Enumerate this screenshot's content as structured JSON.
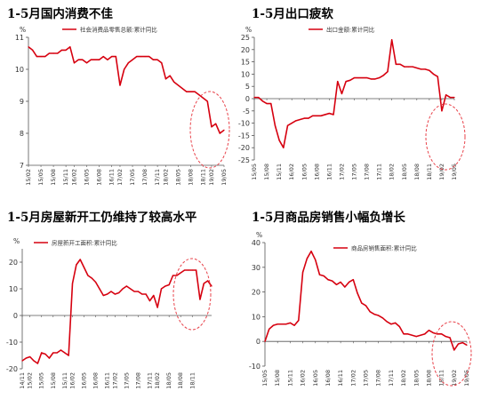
{
  "chart_data": [
    {
      "type": "line",
      "title": "1-5月国内消费不佳",
      "unit": "%",
      "series": [
        {
          "name": "社会消费品零售总额:累计同比",
          "color": "#d6000f"
        }
      ],
      "x_ticks": [
        "15/02",
        "15/05",
        "15/08",
        "15/11",
        "16/02",
        "16/05",
        "16/08",
        "16/11",
        "17/02",
        "17/05",
        "17/08",
        "17/11",
        "18/02",
        "18/05",
        "18/08",
        "18/11",
        "19/02",
        "19/05"
      ],
      "y_ticks": [
        "7",
        "8",
        "9",
        "10",
        "11"
      ],
      "ylim": [
        7,
        11
      ],
      "x": [
        "15/02",
        "15/03",
        "15/04",
        "15/05",
        "15/06",
        "15/07",
        "15/08",
        "15/09",
        "15/10",
        "15/11",
        "15/12",
        "16/02",
        "16/03",
        "16/04",
        "16/05",
        "16/06",
        "16/07",
        "16/08",
        "16/09",
        "16/10",
        "16/11",
        "16/12",
        "17/02",
        "17/03",
        "17/04",
        "17/05",
        "17/06",
        "17/07",
        "17/08",
        "17/09",
        "17/10",
        "17/11",
        "17/12",
        "18/02",
        "18/03",
        "18/04",
        "18/05",
        "18/06",
        "18/07",
        "18/08",
        "18/09",
        "18/10",
        "18/11",
        "18/12",
        "19/02",
        "19/03",
        "19/04",
        "19/05"
      ],
      "values": [
        10.7,
        10.6,
        10.4,
        10.4,
        10.4,
        10.5,
        10.5,
        10.5,
        10.6,
        10.6,
        10.7,
        10.2,
        10.3,
        10.3,
        10.2,
        10.3,
        10.3,
        10.3,
        10.4,
        10.3,
        10.4,
        10.4,
        9.5,
        10.0,
        10.2,
        10.3,
        10.4,
        10.4,
        10.4,
        10.4,
        10.3,
        10.3,
        10.2,
        9.7,
        9.8,
        9.6,
        9.5,
        9.4,
        9.3,
        9.3,
        9.3,
        9.2,
        9.1,
        9.0,
        8.2,
        8.3,
        8.0,
        8.1
      ],
      "annotation": "dashed-circle-highlight"
    },
    {
      "type": "line",
      "title": "1-5月出口疲软",
      "unit": "%",
      "series": [
        {
          "name": "出口金额:累计同比",
          "color": "#d6000f"
        }
      ],
      "x_ticks": [
        "15/05",
        "15/08",
        "15/11",
        "16/02",
        "16/05",
        "16/08",
        "16/11",
        "17/02",
        "17/05",
        "17/08",
        "17/11",
        "18/02",
        "18/05",
        "18/08",
        "18/11",
        "19/02",
        "19/05"
      ],
      "y_ticks": [
        "-25",
        "-20",
        "-15",
        "-10",
        "-5",
        "0",
        "5",
        "10",
        "15",
        "20",
        "25"
      ],
      "ylim": [
        -25,
        25
      ],
      "x": [
        "15/05",
        "15/06",
        "15/07",
        "15/08",
        "15/09",
        "15/10",
        "15/11",
        "15/12",
        "16/01",
        "16/02",
        "16/03",
        "16/04",
        "16/05",
        "16/06",
        "16/07",
        "16/08",
        "16/09",
        "16/10",
        "16/11",
        "16/12",
        "17/01",
        "17/02",
        "17/03",
        "17/04",
        "17/05",
        "17/06",
        "17/07",
        "17/08",
        "17/09",
        "17/10",
        "17/11",
        "17/12",
        "18/01",
        "18/02",
        "18/03",
        "18/04",
        "18/05",
        "18/06",
        "18/07",
        "18/08",
        "18/09",
        "18/10",
        "18/11",
        "18/12",
        "19/01",
        "19/02",
        "19/03",
        "19/04",
        "19/05"
      ],
      "values": [
        0.5,
        0.5,
        -1,
        -2,
        -2,
        -11,
        -17,
        -20,
        -11,
        -10,
        -9,
        -8.5,
        -8,
        -8,
        -7,
        -7,
        -7,
        -6.5,
        -6,
        -6.5,
        7,
        2,
        7,
        7.5,
        8.5,
        8.5,
        8.5,
        8.5,
        8,
        8,
        8.5,
        9.5,
        11,
        24,
        14,
        14,
        13,
        13,
        13,
        12.5,
        12,
        12,
        11.5,
        10,
        9,
        -5,
        1.5,
        0.5,
        0.5
      ],
      "annotation": "dashed-circle-highlight"
    },
    {
      "type": "line",
      "title": "1-5月房屋新开工仍维持了较高水平",
      "unit": "%",
      "series": [
        {
          "name": "房屋新开工面积:累计同比",
          "color": "#d6000f"
        }
      ],
      "x_ticks": [
        "14/11",
        "15/02",
        "15/05",
        "15/08",
        "15/11",
        "16/02",
        "16/05",
        "16/08",
        "16/11",
        "17/02",
        "17/05",
        "17/08",
        "17/11",
        "18/02",
        "18/05",
        "18/08",
        "18/11"
      ],
      "y_ticks": [
        "-20",
        "-10",
        "0",
        "10",
        "20"
      ],
      "ylim": [
        -20,
        25
      ],
      "x": [
        "14/11",
        "14/12",
        "15/02",
        "15/03",
        "15/04",
        "15/05",
        "15/06",
        "15/07",
        "15/08",
        "15/09",
        "15/10",
        "15/11",
        "15/12",
        "16/02",
        "16/03",
        "16/04",
        "16/05",
        "16/06",
        "16/07",
        "16/08",
        "16/09",
        "16/10",
        "16/11",
        "16/12",
        "17/02",
        "17/03",
        "17/04",
        "17/05",
        "17/06",
        "17/07",
        "17/08",
        "17/09",
        "17/10",
        "17/11",
        "17/12",
        "18/02",
        "18/03",
        "18/04",
        "18/05",
        "18/06",
        "18/07",
        "18/08",
        "18/09",
        "18/10",
        "18/11",
        "18/12",
        "19/02",
        "19/03",
        "19/04",
        "19/05"
      ],
      "values": [
        -17,
        -16,
        -15.5,
        -17,
        -18,
        -14,
        -14.5,
        -16,
        -14,
        -14,
        -13,
        -14,
        -15,
        12,
        19,
        21,
        18,
        15,
        14,
        12.5,
        10,
        7.5,
        8,
        9,
        8,
        8.5,
        10,
        11,
        10,
        9,
        9,
        8,
        8,
        5.5,
        7.5,
        3,
        10,
        11,
        11.5,
        15,
        15,
        16,
        17,
        17,
        17,
        17,
        6,
        12,
        13,
        11
      ],
      "annotation": "dashed-circle-highlight"
    },
    {
      "type": "line",
      "title": "1-5月商品房销售小幅负增长",
      "unit": "%",
      "series": [
        {
          "name": "商品房销售面积:累计同比",
          "color": "#d6000f"
        }
      ],
      "x_ticks": [
        "15/05",
        "15/08",
        "15/11",
        "16/02",
        "16/05",
        "16/08",
        "16/11",
        "17/02",
        "17/05",
        "17/08",
        "17/11",
        "18/02",
        "18/05",
        "18/08",
        "18/11",
        "19/02",
        "19/05"
      ],
      "y_ticks": [
        "-10",
        "0",
        "10",
        "20",
        "30",
        "40"
      ],
      "ylim": [
        -10,
        40
      ],
      "x": [
        "15/05",
        "15/06",
        "15/07",
        "15/08",
        "15/09",
        "15/10",
        "15/11",
        "15/12",
        "16/01",
        "16/02",
        "16/03",
        "16/04",
        "16/05",
        "16/06",
        "16/07",
        "16/08",
        "16/09",
        "16/10",
        "16/11",
        "16/12",
        "17/01",
        "17/02",
        "17/03",
        "17/04",
        "17/05",
        "17/06",
        "17/07",
        "17/08",
        "17/09",
        "17/10",
        "17/11",
        "17/12",
        "18/01",
        "18/02",
        "18/03",
        "18/04",
        "18/05",
        "18/06",
        "18/07",
        "18/08",
        "18/09",
        "18/10",
        "18/11",
        "18/12",
        "19/01",
        "19/02",
        "19/03",
        "19/04",
        "19/05"
      ],
      "values": [
        0,
        5,
        6.5,
        7,
        7,
        7,
        7.5,
        6.5,
        8.5,
        28,
        33.5,
        36.5,
        33,
        27,
        26.5,
        25,
        24.5,
        23,
        24,
        22,
        24,
        25,
        19.5,
        15.5,
        14.5,
        12,
        11,
        10.5,
        9.5,
        8,
        7,
        7.5,
        6,
        3,
        3,
        2.5,
        2,
        2.5,
        3,
        4.5,
        3.5,
        3,
        3,
        2,
        1.5,
        -3.5,
        -1,
        -0.5,
        -1.5
      ],
      "annotation": "dashed-circle-highlight"
    }
  ]
}
